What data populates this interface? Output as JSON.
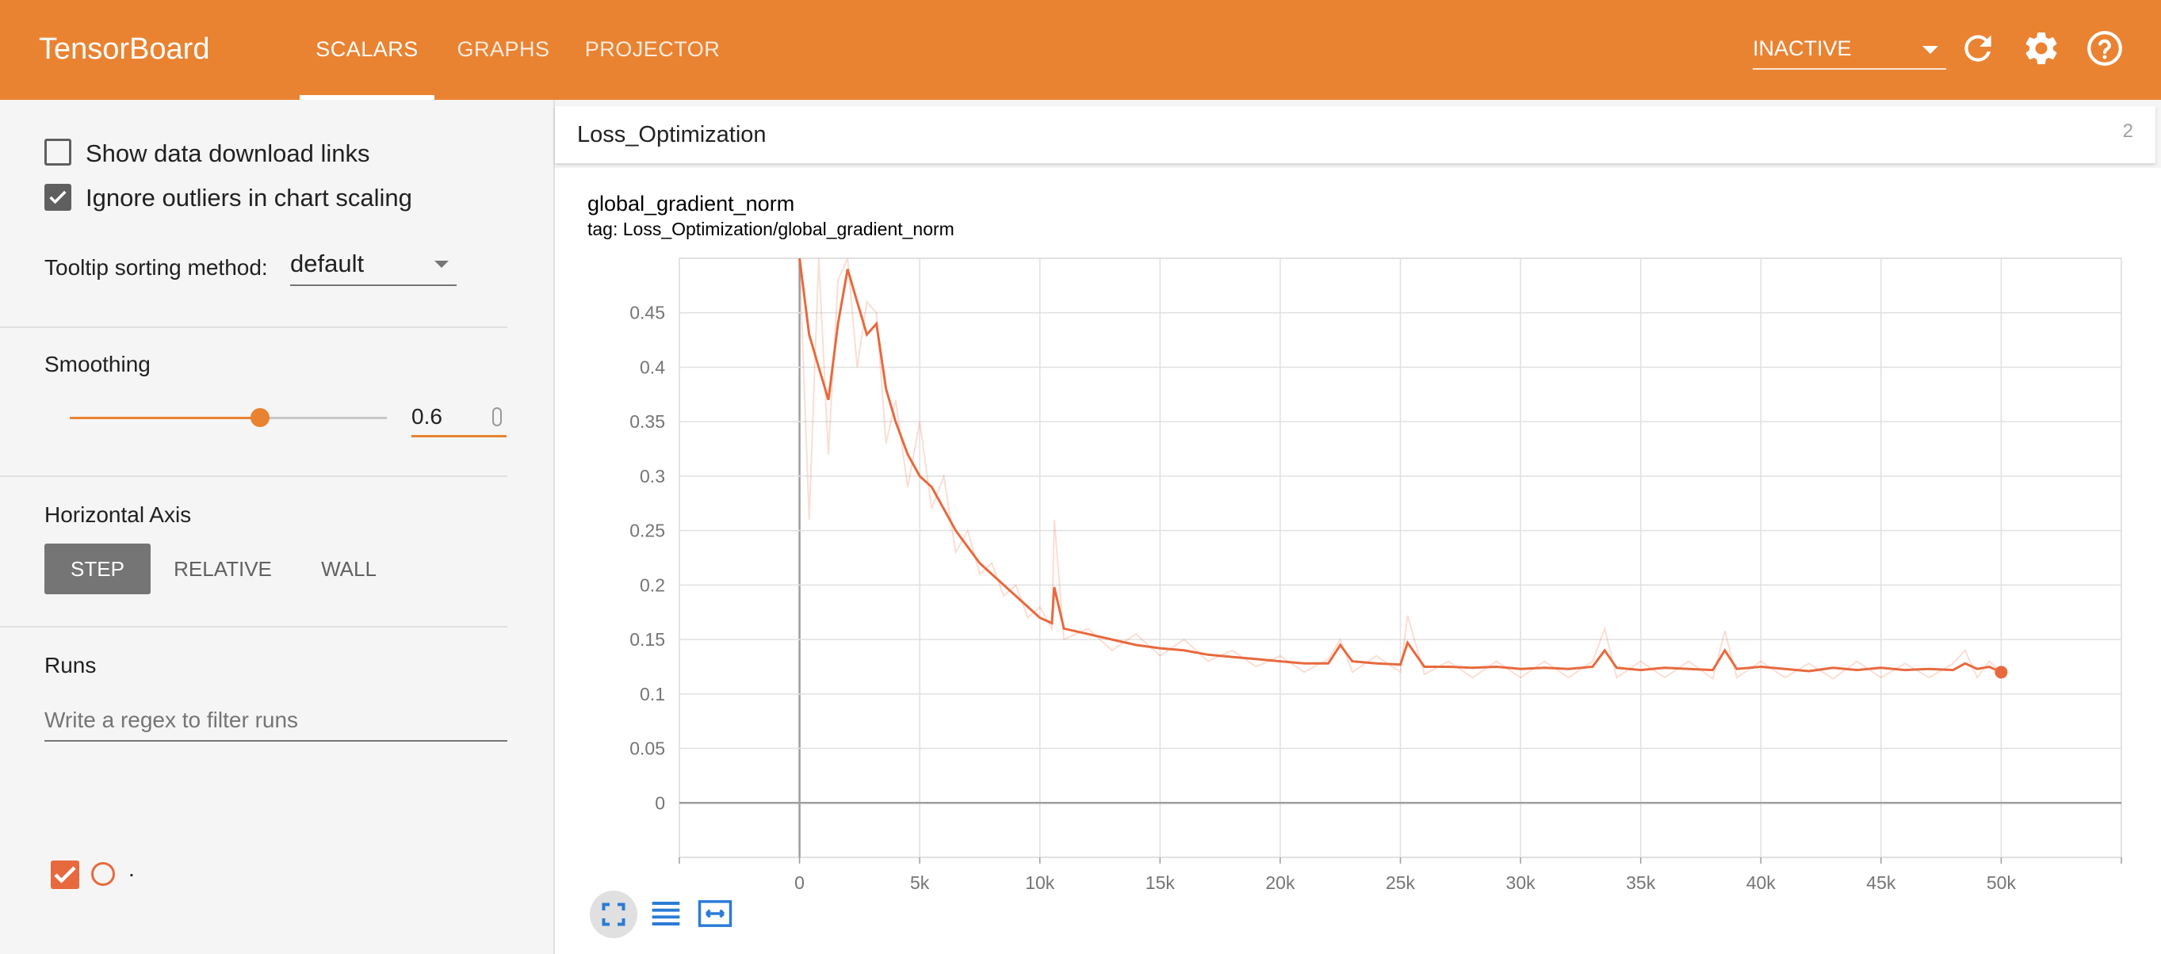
{
  "app": {
    "title": "TensorBoard"
  },
  "tabs": [
    {
      "label": "SCALARS",
      "active": true
    },
    {
      "label": "GRAPHS",
      "active": false
    },
    {
      "label": "PROJECTOR",
      "active": false
    }
  ],
  "toolbar": {
    "status": "INACTIVE",
    "icons": [
      "refresh-icon",
      "settings-icon",
      "help-icon"
    ]
  },
  "colors": {
    "brand": "#e98332",
    "run": "#e8693d"
  },
  "sidebar": {
    "show_download_links": {
      "label": "Show data download links",
      "checked": false
    },
    "ignore_outliers": {
      "label": "Ignore outliers in chart scaling",
      "checked": true
    },
    "tooltip_sorting": {
      "label": "Tooltip sorting method:",
      "value": "default"
    },
    "smoothing": {
      "label": "Smoothing",
      "value": "0.6",
      "fraction": 0.6
    },
    "horizontal_axis": {
      "label": "Horizontal Axis",
      "options": [
        "STEP",
        "RELATIVE",
        "WALL"
      ],
      "selected": "STEP"
    },
    "runs": {
      "label": "Runs",
      "filter_placeholder": "Write a regex to filter runs",
      "items": [
        {
          "name": ".",
          "checked": true
        }
      ]
    }
  },
  "main": {
    "category": {
      "title": "Loss_Optimization",
      "count": "2"
    },
    "card": {
      "title": "global_gradient_norm",
      "tag": "tag: Loss_Optimization/global_gradient_norm"
    }
  },
  "chart_data": {
    "type": "line",
    "title": "global_gradient_norm",
    "xlabel": "",
    "ylabel": "",
    "xlim": [
      -5000,
      55000
    ],
    "ylim": [
      -0.05,
      0.5
    ],
    "xticks": [
      "0",
      "5k",
      "10k",
      "15k",
      "20k",
      "25k",
      "30k",
      "35k",
      "40k",
      "45k",
      "50k"
    ],
    "yticks": [
      "0",
      "0.05",
      "0.1",
      "0.15",
      "0.2",
      "0.25",
      "0.3",
      "0.35",
      "0.4",
      "0.45"
    ],
    "grid": true,
    "series": [
      {
        "name": ".",
        "color": "#e8693d",
        "x": [
          0,
          400,
          800,
          1200,
          1600,
          2000,
          2400,
          2800,
          3200,
          3600,
          4000,
          4500,
          5000,
          5500,
          6000,
          6500,
          7000,
          7500,
          8000,
          8500,
          9000,
          9500,
          10000,
          10500,
          10600,
          11000,
          12000,
          13000,
          14000,
          15000,
          16000,
          17000,
          18000,
          19000,
          20000,
          21000,
          22000,
          22500,
          23000,
          24000,
          25000,
          25300,
          26000,
          27000,
          28000,
          29000,
          30000,
          31000,
          32000,
          33000,
          33500,
          34000,
          35000,
          36000,
          37000,
          38000,
          38500,
          39000,
          40000,
          41000,
          42000,
          43000,
          44000,
          45000,
          46000,
          47000,
          48000,
          48500,
          49000,
          49500,
          50000
        ],
        "smoothed": [
          0.5,
          0.43,
          0.4,
          0.37,
          0.44,
          0.49,
          0.46,
          0.43,
          0.44,
          0.38,
          0.35,
          0.32,
          0.3,
          0.29,
          0.27,
          0.25,
          0.235,
          0.22,
          0.21,
          0.2,
          0.19,
          0.18,
          0.17,
          0.165,
          0.198,
          0.16,
          0.155,
          0.15,
          0.145,
          0.142,
          0.14,
          0.136,
          0.134,
          0.132,
          0.13,
          0.128,
          0.128,
          0.145,
          0.13,
          0.128,
          0.127,
          0.147,
          0.125,
          0.125,
          0.124,
          0.125,
          0.123,
          0.124,
          0.123,
          0.125,
          0.14,
          0.124,
          0.122,
          0.124,
          0.123,
          0.122,
          0.14,
          0.123,
          0.125,
          0.123,
          0.121,
          0.124,
          0.122,
          0.124,
          0.122,
          0.123,
          0.122,
          0.128,
          0.123,
          0.125,
          0.12
        ],
        "raw": [
          0.5,
          0.26,
          0.5,
          0.32,
          0.48,
          0.5,
          0.4,
          0.46,
          0.45,
          0.33,
          0.37,
          0.29,
          0.35,
          0.27,
          0.3,
          0.23,
          0.25,
          0.21,
          0.22,
          0.19,
          0.2,
          0.17,
          0.18,
          0.16,
          0.26,
          0.15,
          0.16,
          0.14,
          0.155,
          0.135,
          0.15,
          0.13,
          0.14,
          0.125,
          0.135,
          0.12,
          0.132,
          0.15,
          0.12,
          0.135,
          0.12,
          0.172,
          0.118,
          0.13,
          0.115,
          0.13,
          0.115,
          0.13,
          0.115,
          0.13,
          0.16,
          0.115,
          0.13,
          0.115,
          0.13,
          0.114,
          0.158,
          0.115,
          0.13,
          0.115,
          0.128,
          0.114,
          0.13,
          0.115,
          0.128,
          0.115,
          0.128,
          0.14,
          0.115,
          0.13,
          0.12
        ]
      }
    ]
  }
}
